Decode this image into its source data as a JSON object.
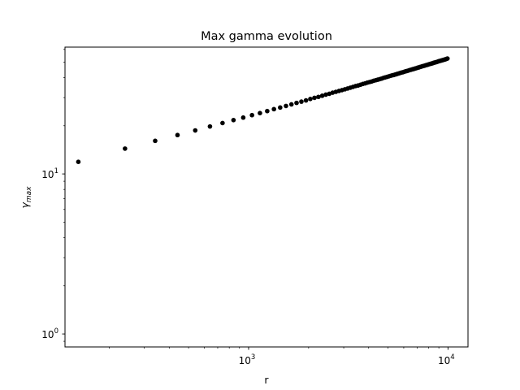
{
  "chart_data": {
    "type": "scatter",
    "title": "Max gamma evolution",
    "xlabel": "r",
    "ylabel": {
      "base": "γ",
      "subscript": "max"
    },
    "xscale": "log",
    "yscale": "log",
    "xlim": [
      120,
      12600
    ],
    "ylim": [
      0.83,
      62
    ],
    "grid": false,
    "legend": "none",
    "marker_color": "#000000",
    "x_ticks": [
      {
        "value": 1000,
        "base": "10",
        "exp": "3"
      },
      {
        "value": 10000,
        "base": "10",
        "exp": "4"
      }
    ],
    "y_ticks": [
      {
        "value": 1,
        "base": "10",
        "exp": "0"
      },
      {
        "value": 10,
        "base": "10",
        "exp": "1"
      }
    ],
    "series": [
      {
        "x": [
          140,
          240,
          340,
          440,
          540,
          640,
          740,
          840,
          940,
          1040,
          1140,
          1240,
          1340,
          1440,
          1540,
          1640,
          1740,
          1840,
          1940,
          2040,
          2140,
          2240,
          2340,
          2440,
          2540,
          2640,
          2740,
          2840,
          2940,
          3040,
          3140,
          3240,
          3340,
          3440,
          3540,
          3640,
          3740,
          3840,
          3940,
          4040,
          4140,
          4240,
          4340,
          4440,
          4540,
          4640,
          4740,
          4840,
          4940,
          5040,
          5140,
          5240,
          5340,
          5440,
          5540,
          5640,
          5740,
          5840,
          5940,
          6040,
          6140,
          6240,
          6340,
          6440,
          6540,
          6640,
          6740,
          6840,
          6940,
          7040,
          7140,
          7240,
          7340,
          7440,
          7540,
          7640,
          7740,
          7840,
          7940,
          8040,
          8140,
          8240,
          8340,
          8440,
          8540,
          8640,
          8740,
          8840,
          8940,
          9040,
          9140,
          9240,
          9340,
          9440,
          9540,
          9640,
          9740,
          9840,
          9940
        ],
        "y": [
          11.9,
          14.4,
          16.1,
          17.5,
          18.7,
          19.8,
          20.8,
          21.7,
          22.5,
          23.3,
          24.0,
          24.7,
          25.4,
          26.0,
          26.6,
          27.2,
          27.8,
          28.3,
          28.8,
          29.4,
          29.9,
          30.3,
          30.8,
          31.3,
          31.7,
          32.2,
          32.6,
          33.0,
          33.4,
          33.8,
          34.2,
          34.6,
          35.0,
          35.4,
          35.7,
          36.1,
          36.5,
          36.8,
          37.2,
          37.5,
          37.8,
          38.2,
          38.5,
          38.8,
          39.1,
          39.4,
          39.8,
          40.1,
          40.4,
          40.7,
          41.0,
          41.3,
          41.5,
          41.8,
          42.1,
          42.4,
          42.7,
          43.0,
          43.2,
          43.5,
          43.8,
          44.0,
          44.3,
          44.6,
          44.8,
          45.1,
          45.3,
          45.6,
          45.8,
          46.1,
          46.3,
          46.6,
          46.8,
          47.1,
          47.3,
          47.5,
          47.8,
          48.0,
          48.2,
          48.5,
          48.7,
          48.9,
          49.1,
          49.4,
          49.6,
          49.8,
          50.0,
          50.2,
          50.5,
          50.7,
          50.9,
          51.1,
          51.3,
          51.5,
          51.7,
          51.9,
          52.1,
          52.4,
          52.6
        ]
      }
    ]
  }
}
